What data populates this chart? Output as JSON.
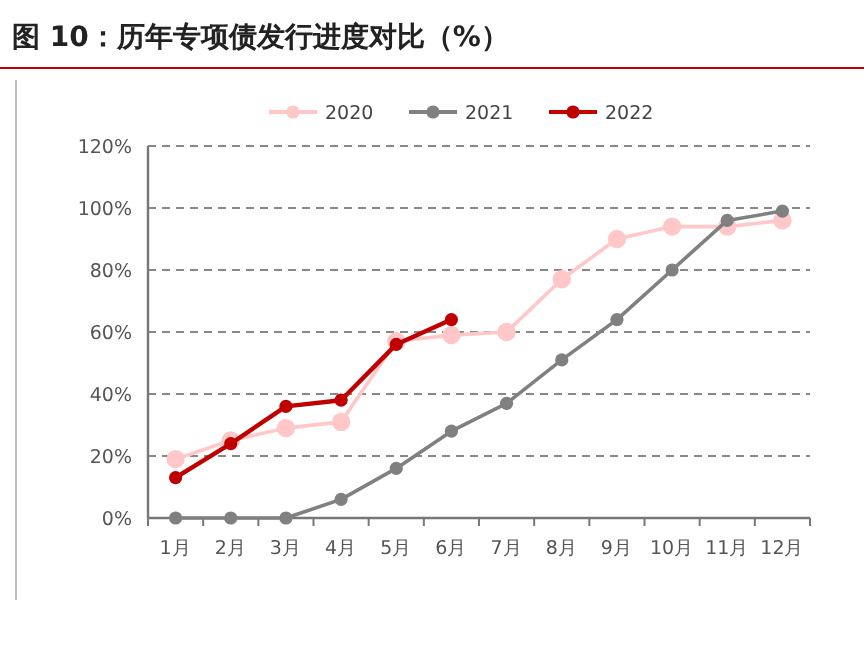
{
  "chart_data": {
    "type": "line",
    "title": "图 10：历年专项债发行进度对比（%）",
    "categories": [
      "1月",
      "2月",
      "3月",
      "4月",
      "5月",
      "6月",
      "7月",
      "8月",
      "9月",
      "10月",
      "11月",
      "12月"
    ],
    "series": [
      {
        "name": "2020",
        "color": "#ffc7c7",
        "values": [
          19,
          25,
          29,
          31,
          57,
          59,
          60,
          77,
          90,
          94,
          94,
          96
        ]
      },
      {
        "name": "2021",
        "color": "#808080",
        "values": [
          0,
          0,
          0,
          6,
          16,
          28,
          37,
          51,
          64,
          80,
          96,
          99
        ]
      },
      {
        "name": "2022",
        "color": "#c00000",
        "values": [
          13,
          24,
          36,
          38,
          56,
          64,
          null,
          null,
          null,
          null,
          null,
          null
        ]
      }
    ],
    "ylim": [
      0,
      120
    ],
    "yticks": [
      {
        "value": 0,
        "label": "0%"
      },
      {
        "value": 20,
        "label": "20%"
      },
      {
        "value": 40,
        "label": "40%"
      },
      {
        "value": 60,
        "label": "60%"
      },
      {
        "value": 80,
        "label": "80%"
      },
      {
        "value": 100,
        "label": "100%"
      },
      {
        "value": 120,
        "label": "120%"
      }
    ],
    "grid": "y",
    "legend": "top",
    "marker": "circle"
  }
}
